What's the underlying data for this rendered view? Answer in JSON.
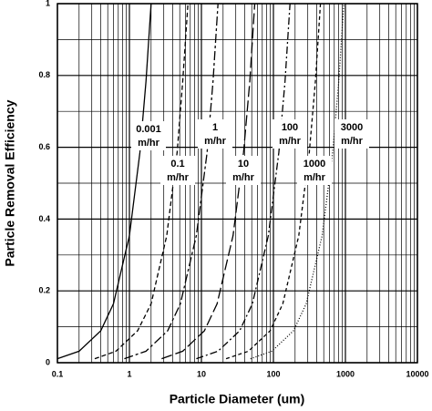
{
  "chart_data": {
    "type": "line",
    "xlabel": "Particle Diameter (um)",
    "ylabel": "Particle Removal Efficiency",
    "xscale": "log",
    "xlim": [
      0.1,
      10000
    ],
    "ylim": [
      0,
      1
    ],
    "xticks": [
      0.1,
      1,
      10,
      100,
      1000,
      10000
    ],
    "yticks": [
      0,
      0.2,
      0.4,
      0.6,
      0.8,
      1
    ],
    "xgrid_minor": [
      0.2,
      0.3,
      0.4,
      0.5,
      0.6,
      0.7,
      0.8,
      0.9,
      2,
      3,
      4,
      5,
      6,
      7,
      8,
      9,
      20,
      30,
      40,
      50,
      60,
      70,
      80,
      90,
      200,
      300,
      400,
      500,
      600,
      700,
      800,
      900,
      2000,
      3000,
      4000,
      5000,
      6000,
      7000,
      8000,
      9000
    ],
    "ygrid_minor": [
      0.1,
      0.3,
      0.5,
      0.7,
      0.9
    ],
    "unit": "m/hr",
    "series": [
      {
        "name": "0.001",
        "color": "#000",
        "dash": "none",
        "x": [
          0.1,
          0.2,
          0.4,
          0.6,
          1,
          1.4,
          1.7,
          2
        ],
        "values": [
          0.011,
          0.032,
          0.089,
          0.164,
          0.354,
          0.586,
          0.784,
          1
        ]
      },
      {
        "name": "0.1",
        "color": "#000",
        "dash": "5,3",
        "x": [
          0.33,
          0.65,
          1.3,
          2,
          3.3,
          4.6,
          5.5,
          6.5
        ],
        "values": [
          0.011,
          0.032,
          0.089,
          0.164,
          0.354,
          0.586,
          0.784,
          1
        ]
      },
      {
        "name": "1",
        "color": "#000",
        "dash": "10,3,3,3",
        "x": [
          0.85,
          1.7,
          3.4,
          5.1,
          8.5,
          12,
          14.5,
          17
        ],
        "values": [
          0.011,
          0.032,
          0.089,
          0.164,
          0.354,
          0.586,
          0.784,
          1
        ]
      },
      {
        "name": "10",
        "color": "#000",
        "dash": "12,4",
        "x": [
          2.8,
          5.5,
          11,
          16.5,
          27.5,
          38.5,
          47,
          55
        ],
        "values": [
          0.011,
          0.032,
          0.089,
          0.164,
          0.354,
          0.586,
          0.784,
          1
        ]
      },
      {
        "name": "100",
        "color": "#000",
        "dash": "8,3,2,3",
        "x": [
          8.5,
          17,
          34,
          51,
          85,
          119,
          145,
          170
        ],
        "values": [
          0.011,
          0.032,
          0.089,
          0.164,
          0.354,
          0.586,
          0.784,
          1
        ]
      },
      {
        "name": "1000",
        "color": "#000",
        "dash": "4,3",
        "x": [
          22,
          45,
          90,
          135,
          225,
          315,
          383,
          450
        ],
        "values": [
          0.011,
          0.032,
          0.089,
          0.164,
          0.354,
          0.586,
          0.784,
          1
        ]
      },
      {
        "name": "3000",
        "color": "#000",
        "dash": "1,2",
        "x": [
          48,
          95,
          190,
          285,
          475,
          665,
          808,
          950
        ],
        "values": [
          0.011,
          0.032,
          0.089,
          0.164,
          0.354,
          0.586,
          0.784,
          1
        ]
      }
    ]
  }
}
